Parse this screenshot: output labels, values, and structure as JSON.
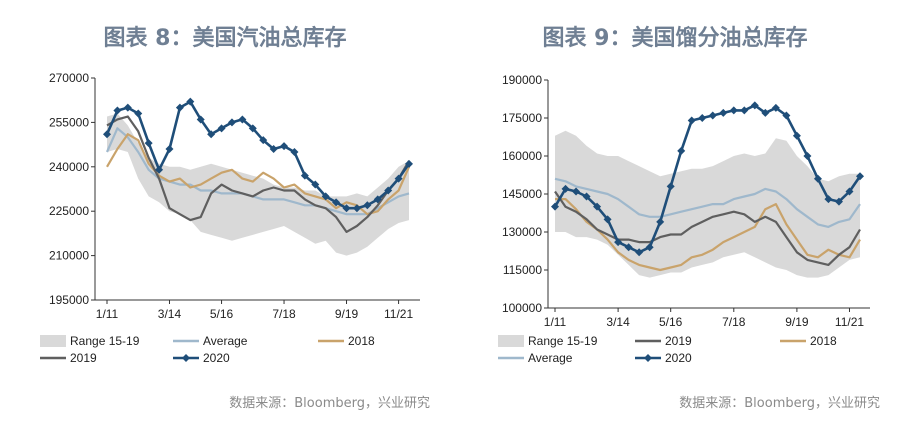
{
  "colors": {
    "title": "#6f7f93",
    "range_fill": "#d9d9d9",
    "average": "#9fb8cc",
    "y2018": "#c9a36b",
    "y2019": "#5f5f5f",
    "y2020": "#1f4e79"
  },
  "chart_data": [
    {
      "type": "line",
      "title": "图表 8：美国汽油总库存",
      "source": "数据来源：Bloomberg，兴业研究",
      "xlabel": "",
      "ylabel": "",
      "x_ticks": [
        "1/11",
        "3/14",
        "5/16",
        "7/18",
        "9/19",
        "11/21"
      ],
      "y_ticks": [
        "195000",
        "210000",
        "225000",
        "240000",
        "255000",
        "270000"
      ],
      "ylim": [
        195000,
        270000
      ],
      "legend": [
        {
          "key": "range",
          "label": "Range 15-19"
        },
        {
          "key": "average",
          "label": "Average"
        },
        {
          "key": "y2018",
          "label": "2018"
        },
        {
          "key": "y2019",
          "label": "2019"
        },
        {
          "key": "y2020",
          "label": "2020"
        }
      ],
      "range": {
        "upper": [
          257000,
          258000,
          254000,
          248000,
          243000,
          241000,
          240000,
          240000,
          239000,
          240000,
          241000,
          240000,
          239000,
          238000,
          237000,
          236000,
          234000,
          233000,
          233000,
          232000,
          232000,
          230000,
          230000,
          230000,
          231000,
          230000,
          233000,
          236000,
          240000,
          242000
        ],
        "lower": [
          245000,
          246000,
          245000,
          236000,
          230000,
          228000,
          225000,
          224000,
          222000,
          218000,
          217000,
          216000,
          215000,
          216000,
          217000,
          218000,
          219000,
          220000,
          218000,
          216000,
          214000,
          215000,
          211000,
          210000,
          211000,
          213000,
          216000,
          219000,
          221000,
          222000
        ]
      },
      "series": [
        {
          "name": "Average",
          "key": "average",
          "values": [
            245000,
            253000,
            250000,
            245000,
            239000,
            236000,
            235000,
            234000,
            234000,
            232000,
            232000,
            231000,
            231000,
            231000,
            230000,
            229000,
            229000,
            229000,
            228000,
            227000,
            227000,
            226000,
            225000,
            224000,
            224000,
            224000,
            226000,
            228000,
            230000,
            231000
          ]
        },
        {
          "name": "2018",
          "key": "y2018",
          "values": [
            240000,
            246000,
            251000,
            249000,
            241000,
            237000,
            235000,
            236000,
            233000,
            234000,
            236000,
            238000,
            239000,
            236000,
            235000,
            238000,
            236000,
            233000,
            234000,
            231000,
            230000,
            229000,
            226000,
            228000,
            227000,
            224000,
            225000,
            229000,
            232000,
            240000
          ]
        },
        {
          "name": "2019",
          "key": "y2019",
          "values": [
            254000,
            256000,
            257000,
            252000,
            243000,
            236000,
            226000,
            224000,
            222000,
            223000,
            231000,
            234000,
            232000,
            231000,
            230000,
            232000,
            233000,
            232000,
            232000,
            229000,
            227000,
            226000,
            223000,
            218000,
            220000,
            223000,
            227000,
            232000,
            236000,
            242000
          ]
        },
        {
          "name": "2020",
          "key": "y2020",
          "values": [
            251000,
            259000,
            260000,
            258000,
            248000,
            239000,
            246000,
            260000,
            262000,
            256000,
            251000,
            253000,
            255000,
            256000,
            253000,
            249000,
            246000,
            247000,
            245000,
            237000,
            234000,
            230000,
            228000,
            226000,
            226000,
            227000,
            229000,
            232000,
            236000,
            241000
          ]
        }
      ]
    },
    {
      "type": "line",
      "title": "图表 9：美国馏分油总库存",
      "source": "数据来源：Bloomberg，兴业研究",
      "xlabel": "",
      "ylabel": "",
      "x_ticks": [
        "1/11",
        "3/14",
        "5/16",
        "7/18",
        "9/19",
        "11/21"
      ],
      "y_ticks": [
        "100000",
        "115000",
        "130000",
        "145000",
        "160000",
        "175000",
        "190000"
      ],
      "ylim": [
        100000,
        190000
      ],
      "legend": [
        {
          "key": "range",
          "label": "Range 15-19"
        },
        {
          "key": "y2019",
          "label": "2019"
        },
        {
          "key": "y2018",
          "label": "2018"
        },
        {
          "key": "average",
          "label": "Average"
        },
        {
          "key": "y2020",
          "label": "2020"
        }
      ],
      "range": {
        "upper": [
          168000,
          170000,
          168000,
          164000,
          161000,
          160000,
          160000,
          158000,
          156000,
          154000,
          152000,
          153000,
          154000,
          155000,
          155000,
          156000,
          158000,
          160000,
          161000,
          160000,
          161000,
          167000,
          166000,
          160000,
          156000,
          151000,
          150000,
          152000,
          153000,
          153000
        ],
        "lower": [
          130000,
          130000,
          128000,
          128000,
          127000,
          125000,
          121000,
          117000,
          113000,
          112000,
          113000,
          114000,
          114000,
          116000,
          117000,
          118000,
          120000,
          121000,
          122000,
          120000,
          118000,
          116000,
          115000,
          113000,
          112000,
          112000,
          113000,
          116000,
          119000,
          120000
        ]
      },
      "series": [
        {
          "name": "Average",
          "key": "average",
          "values": [
            151000,
            150000,
            148000,
            147000,
            146000,
            145000,
            143000,
            140000,
            137000,
            136000,
            136000,
            137000,
            138000,
            139000,
            140000,
            141000,
            141000,
            143000,
            144000,
            145000,
            147000,
            146000,
            143000,
            139000,
            136000,
            133000,
            132000,
            134000,
            135000,
            141000
          ]
        },
        {
          "name": "2018",
          "key": "y2018",
          "values": [
            143000,
            143000,
            139000,
            134000,
            131000,
            127000,
            122000,
            119000,
            117000,
            116000,
            115000,
            116000,
            117000,
            120000,
            121000,
            123000,
            126000,
            128000,
            130000,
            132000,
            139000,
            141000,
            133000,
            127000,
            121000,
            120000,
            123000,
            121000,
            120000,
            127000
          ]
        },
        {
          "name": "2019",
          "key": "y2019",
          "values": [
            146000,
            140000,
            138000,
            135000,
            131000,
            129000,
            127000,
            127000,
            126000,
            126000,
            128000,
            129000,
            129000,
            132000,
            134000,
            136000,
            137000,
            138000,
            137000,
            134000,
            136000,
            134000,
            128000,
            122000,
            119000,
            118000,
            117000,
            121000,
            124000,
            131000
          ]
        },
        {
          "name": "2020",
          "key": "y2020",
          "values": [
            140000,
            147000,
            146000,
            144000,
            140000,
            135000,
            126000,
            124000,
            122000,
            124000,
            134000,
            148000,
            162000,
            174000,
            175000,
            176000,
            177000,
            178000,
            178000,
            180000,
            177000,
            179000,
            176000,
            168000,
            160000,
            151000,
            143000,
            142000,
            146000,
            152000
          ]
        }
      ]
    }
  ]
}
